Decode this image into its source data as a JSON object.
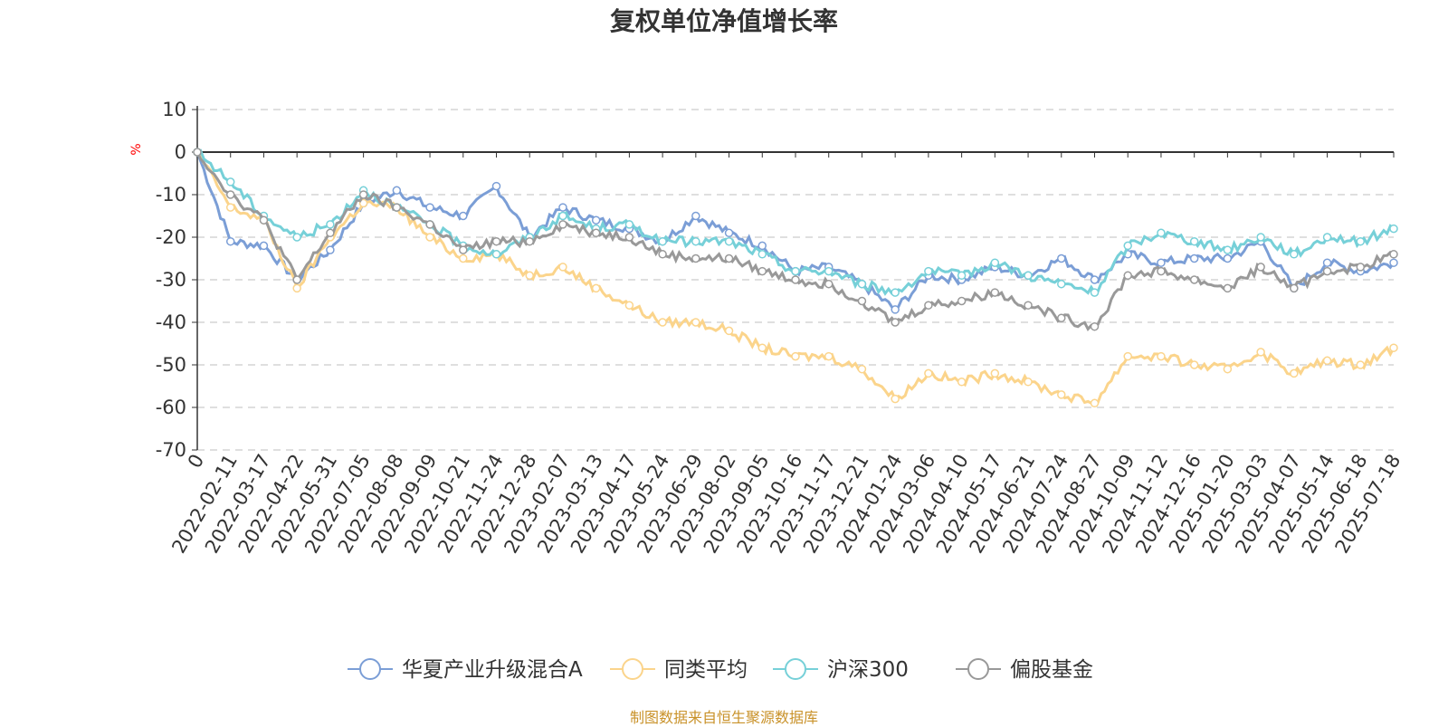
{
  "title": "复权单位净值增长率",
  "credit": "制图数据来自恒生聚源数据库",
  "chart_data": {
    "type": "line",
    "title": "复权单位净值增长率",
    "ylabel": "%",
    "ylim": [
      -70,
      10
    ],
    "yticks": [
      10,
      0,
      -10,
      -20,
      -30,
      -40,
      -50,
      -60,
      -70
    ],
    "grid": true,
    "legend_position": "bottom",
    "x": [
      "0",
      "2022-02-11",
      "2022-03-17",
      "2022-04-22",
      "2022-05-31",
      "2022-07-05",
      "2022-08-08",
      "2022-09-09",
      "2022-10-21",
      "2022-11-24",
      "2022-12-28",
      "2023-02-07",
      "2023-03-13",
      "2023-04-17",
      "2023-05-24",
      "2023-06-29",
      "2023-08-02",
      "2023-09-05",
      "2023-10-16",
      "2023-11-17",
      "2023-12-21",
      "2024-01-24",
      "2024-03-06",
      "2024-04-10",
      "2024-05-17",
      "2024-06-21",
      "2024-07-24",
      "2024-08-27",
      "2024-10-09",
      "2024-11-12",
      "2024-12-16",
      "2025-01-20",
      "2025-03-03",
      "2025-04-07",
      "2025-05-14",
      "2025-06-18",
      "2025-07-18"
    ],
    "series": [
      {
        "name": "华夏产业升级混合A",
        "color": "#7b9ed6",
        "values": [
          0,
          -21,
          -22,
          -30,
          -23,
          -12,
          -9,
          -13,
          -15,
          -8,
          -20,
          -13,
          -16,
          -18,
          -21,
          -15,
          -19,
          -22,
          -28,
          -27,
          -31,
          -37,
          -29,
          -30,
          -27,
          -29,
          -25,
          -30,
          -24,
          -26,
          -25,
          -25,
          -21,
          -32,
          -26,
          -28,
          -26
        ]
      },
      {
        "name": "同类平均",
        "color": "#fbd48b",
        "values": [
          0,
          -13,
          -16,
          -32,
          -20,
          -12,
          -13,
          -20,
          -25,
          -24,
          -29,
          -27,
          -32,
          -36,
          -40,
          -40,
          -42,
          -46,
          -48,
          -48,
          -51,
          -58,
          -52,
          -54,
          -52,
          -54,
          -57,
          -59,
          -48,
          -48,
          -50,
          -51,
          -47,
          -52,
          -49,
          -50,
          -46
        ]
      },
      {
        "name": "沪深300",
        "color": "#76d0d8",
        "values": [
          0,
          -7,
          -15,
          -20,
          -17,
          -9,
          -13,
          -17,
          -22,
          -24,
          -20,
          -15,
          -18,
          -17,
          -21,
          -21,
          -21,
          -24,
          -28,
          -28,
          -31,
          -33,
          -28,
          -29,
          -26,
          -29,
          -31,
          -33,
          -22,
          -19,
          -21,
          -23,
          -20,
          -24,
          -20,
          -21,
          -18
        ]
      },
      {
        "name": "偏股基金",
        "color": "#999999",
        "values": [
          0,
          -10,
          -16,
          -30,
          -19,
          -10,
          -13,
          -17,
          -23,
          -21,
          -21,
          -17,
          -19,
          -20,
          -24,
          -25,
          -25,
          -28,
          -30,
          -31,
          -35,
          -40,
          -36,
          -35,
          -33,
          -36,
          -39,
          -41,
          -29,
          -28,
          -30,
          -32,
          -27,
          -32,
          -28,
          -27,
          -24
        ]
      }
    ]
  }
}
